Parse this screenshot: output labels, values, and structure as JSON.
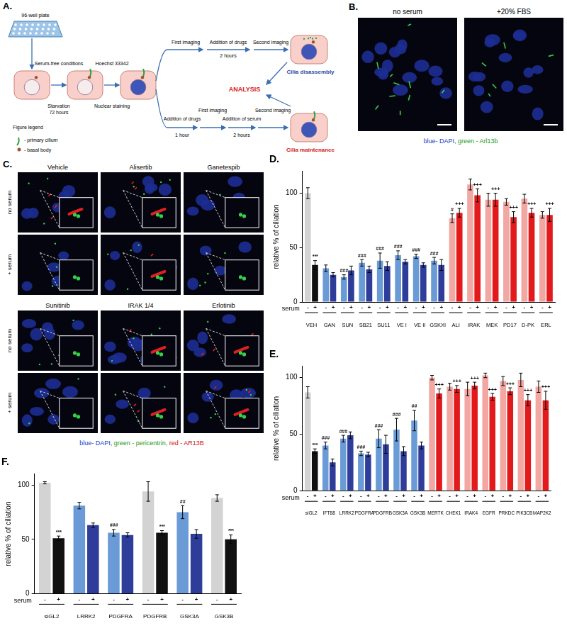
{
  "figure": {
    "A": {
      "label": "A.",
      "texts": {
        "plate": "96-well plate",
        "serum_free": "Serum-free conditions",
        "starvation": "Starvation",
        "hours72": "72 hours",
        "hoechst": "Hoechst 33342",
        "nuclear": "Nuclear staining",
        "first_imaging_1": "First imaging",
        "addition_drugs_1": "Addition of drugs",
        "hours2_1": "2 hours",
        "second_imaging_1": "Second imaging",
        "disassembly": "Cilia disassembly",
        "analysis": "ANALYSIS",
        "addition_drugs_2": "Addition of drugs",
        "hour1": "1 hour",
        "first_imaging_2": "First imaging",
        "addition_serum": "Addition of serum",
        "hours2_2": "2 hours",
        "second_imaging_2": "Second imaging",
        "maintenance": "Cilia maintenance",
        "legend_title": "Figure legend",
        "legend_cilium": "- primary cilium",
        "legend_body": "- basal body"
      }
    },
    "B": {
      "label": "B.",
      "panels": [
        "no serum",
        "+20% FBS"
      ],
      "caption": [
        {
          "text": "blue- DAPI,",
          "color": "#2040c0"
        },
        {
          "text": " green - Arl13b",
          "color": "#1a9a1a"
        }
      ]
    },
    "C": {
      "label": "C.",
      "rows": [
        "no serum",
        "+ serum"
      ],
      "groups": [
        [
          {
            "title": "Vehicle",
            "cilia": [
              true,
              false
            ]
          },
          {
            "title": "Alisertib",
            "cilia": [
              true,
              true
            ]
          },
          {
            "title": "Ganetespib",
            "cilia": [
              false,
              false
            ]
          }
        ],
        [
          {
            "title": "Sunitinib",
            "cilia": [
              false,
              false
            ]
          },
          {
            "title": "IRAK 1/4",
            "cilia": [
              true,
              true
            ]
          },
          {
            "title": "Erlotinib",
            "cilia": [
              true,
              true
            ]
          }
        ]
      ],
      "caption": [
        {
          "text": "blue- DAPI,",
          "color": "#2040c0"
        },
        {
          "text": " green - pericentrin,",
          "color": "#1a9a1a"
        },
        {
          "text": " red - AR13B",
          "color": "#d01010"
        }
      ]
    }
  },
  "chart_data": [
    {
      "type": "bar",
      "title": "D.",
      "categories": [
        "VEH",
        "GAN",
        "SUN",
        "SB21",
        "SU11",
        "VE I",
        "VE II",
        "GSKXI",
        "ALI",
        "IRAK",
        "MEK",
        "PD17",
        "D-PK",
        "ERL"
      ],
      "xlabel": "serum",
      "ylabel": "relative % of ciliation",
      "ylim": [
        0,
        120
      ],
      "yticks": [
        0,
        50,
        100
      ],
      "grid": false,
      "series": [
        {
          "name": "-",
          "colors": [
            "#d3d3d3",
            "#6b9bd6",
            "#6b9bd6",
            "#6b9bd6",
            "#6b9bd6",
            "#6b9bd6",
            "#6b9bd6",
            "#6b9bd6",
            "#f2a7a3",
            "#f2a7a3",
            "#f2a7a3",
            "#f2a7a3",
            "#f2a7a3",
            "#f2a7a3"
          ],
          "values": [
            100,
            31,
            23,
            36,
            38,
            43,
            42,
            38,
            77,
            108,
            94,
            92,
            95,
            80
          ],
          "errors": [
            5,
            3,
            2,
            3,
            7,
            4,
            2,
            3,
            4,
            5,
            6,
            3,
            4,
            3
          ],
          "annotations": [
            null,
            null,
            "###",
            "###",
            "###",
            "###",
            "###",
            "###",
            "#",
            null,
            null,
            null,
            null,
            null
          ]
        },
        {
          "name": "+",
          "colors": [
            "#111111",
            "#2e3d99",
            "#2e3d99",
            "#2e3d99",
            "#2e3d99",
            "#2e3d99",
            "#2e3d99",
            "#2e3d99",
            "#e31a1c",
            "#e31a1c",
            "#e31a1c",
            "#e31a1c",
            "#e31a1c",
            "#e31a1c"
          ],
          "values": [
            34,
            25,
            29,
            30,
            33,
            37,
            34,
            34,
            82,
            98,
            94,
            78,
            82,
            80
          ],
          "errors": [
            4,
            2,
            4,
            3,
            4,
            2,
            2,
            5,
            4,
            6,
            6,
            5,
            4,
            6
          ],
          "annotations": [
            "***",
            null,
            null,
            null,
            null,
            null,
            null,
            null,
            "+++",
            "+++",
            "+++",
            "+++",
            "+++",
            "+++"
          ]
        }
      ]
    },
    {
      "type": "bar",
      "title": "E.",
      "categories": [
        "siGL2",
        "IFT88",
        "LRRK2",
        "PDGFRA",
        "PDGFRB",
        "GSK3A",
        "GSK3B",
        "MERTK",
        "CHEK1",
        "IRAK4",
        "EGFR",
        "PRKDC",
        "PIK3CB",
        "MAP2K2"
      ],
      "xlabel": "serum",
      "ylabel": "relative % of ciliation",
      "ylim": [
        0,
        110
      ],
      "yticks": [
        0,
        50,
        100
      ],
      "grid": false,
      "series": [
        {
          "name": "-",
          "colors": [
            "#d3d3d3",
            "#6b9bd6",
            "#6b9bd6",
            "#6b9bd6",
            "#6b9bd6",
            "#6b9bd6",
            "#6b9bd6",
            "#f2a7a3",
            "#f2a7a3",
            "#f2a7a3",
            "#f2a7a3",
            "#f2a7a3",
            "#f2a7a3",
            "#f2a7a3"
          ],
          "values": [
            87,
            40,
            46,
            33,
            46,
            54,
            62,
            100,
            92,
            90,
            102,
            97,
            98,
            92
          ],
          "errors": [
            5,
            3,
            3,
            2,
            8,
            10,
            9,
            2,
            3,
            6,
            2,
            4,
            6,
            5
          ],
          "annotations": [
            null,
            "###",
            "###",
            "###",
            "###",
            "###",
            "##",
            null,
            null,
            null,
            null,
            null,
            null,
            null
          ]
        },
        {
          "name": "+",
          "colors": [
            "#111111",
            "#2e3d99",
            "#2e3d99",
            "#2e3d99",
            "#2e3d99",
            "#2e3d99",
            "#2e3d99",
            "#e31a1c",
            "#e31a1c",
            "#e31a1c",
            "#e31a1c",
            "#e31a1c",
            "#e31a1c",
            "#e31a1c"
          ],
          "values": [
            35,
            25,
            49,
            32,
            41,
            35,
            40,
            86,
            90,
            93,
            83,
            88,
            80,
            80
          ],
          "errors": [
            2,
            3,
            3,
            2,
            8,
            4,
            3,
            4,
            3,
            3,
            3,
            3,
            5,
            8
          ],
          "annotations": [
            "***",
            null,
            null,
            null,
            null,
            null,
            null,
            "+++",
            "+++",
            "+++",
            "+++",
            "+++",
            "+++",
            "+++"
          ]
        }
      ]
    },
    {
      "type": "bar",
      "title": "F.",
      "categories": [
        "siGL2",
        "LRRK2",
        "PDGFRA",
        "PDGFRB",
        "GSK3A",
        "GSK3B"
      ],
      "xlabel": "serum",
      "ylabel": "relative % of ciliation",
      "ylim": [
        0,
        110
      ],
      "yticks": [
        0,
        50,
        100
      ],
      "grid": false,
      "series": [
        {
          "name": "-",
          "colors": [
            "#d3d3d3",
            "#6b9bd6",
            "#6b9bd6",
            "#d3d3d3",
            "#6b9bd6",
            "#d3d3d3"
          ],
          "values": [
            102,
            81,
            56,
            94,
            75,
            88
          ],
          "errors": [
            1,
            3,
            3,
            9,
            6,
            3
          ],
          "annotations": [
            null,
            null,
            "###",
            null,
            "##",
            null
          ]
        },
        {
          "name": "+",
          "colors": [
            "#111111",
            "#2e3d99",
            "#2e3d99",
            "#111111",
            "#2e3d99",
            "#111111"
          ],
          "values": [
            51,
            63,
            54,
            56,
            55,
            50
          ],
          "errors": [
            2,
            2,
            2,
            2,
            4,
            4
          ],
          "annotations": [
            "***",
            null,
            null,
            "***",
            null,
            "***"
          ]
        }
      ]
    }
  ]
}
